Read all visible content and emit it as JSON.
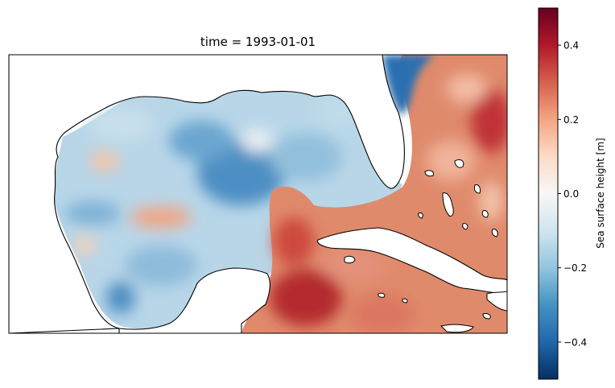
{
  "title": "time = 1993-01-01",
  "colorbar": {
    "label": "Sea surface height [m]",
    "min": -0.5,
    "max": 0.5,
    "ticks": [
      {
        "value": 0.4,
        "text": "0.4"
      },
      {
        "value": 0.2,
        "text": "0.2"
      },
      {
        "value": 0.0,
        "text": "0.0"
      },
      {
        "value": -0.2,
        "text": "−0.2"
      },
      {
        "value": -0.4,
        "text": "−0.4"
      }
    ],
    "colormap": "RdBu_r"
  },
  "colors": {
    "deep_red": "#67001f",
    "red": "#c0352f",
    "salmon": "#e08a6c",
    "light_salmon": "#f4b898",
    "white": "#f7f7f7",
    "light_blue": "#b9d7e8",
    "blue": "#5d9fcb",
    "deep_blue": "#053061",
    "land": "#ffffff",
    "coast": "#000000"
  }
}
